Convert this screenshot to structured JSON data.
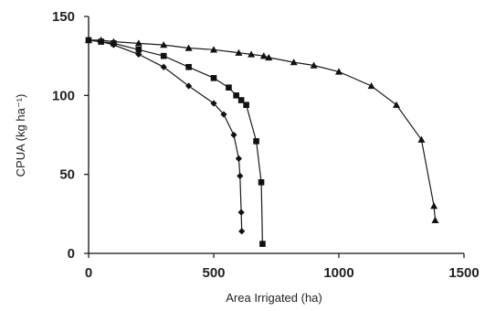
{
  "chart_data": {
    "type": "line",
    "xlabel": "Area Irrigated (ha)",
    "ylabel": "CPUA (kg ha⁻¹)",
    "xlim": [
      0,
      1500
    ],
    "ylim": [
      0,
      150
    ],
    "x_ticks": [
      "0",
      "500",
      "1000",
      "1500"
    ],
    "y_ticks": [
      "0",
      "50",
      "100",
      "150"
    ],
    "grid": false,
    "legend": "none",
    "series": [
      {
        "marker": "diamond",
        "points": [
          [
            0,
            135
          ],
          [
            50,
            134
          ],
          [
            100,
            132
          ],
          [
            200,
            126
          ],
          [
            300,
            118
          ],
          [
            400,
            106
          ],
          [
            500,
            95
          ],
          [
            540,
            88
          ],
          [
            580,
            75
          ],
          [
            600,
            60
          ],
          [
            605,
            49
          ],
          [
            610,
            26
          ],
          [
            612,
            14
          ]
        ]
      },
      {
        "marker": "square",
        "points": [
          [
            0,
            135
          ],
          [
            50,
            134
          ],
          [
            100,
            133
          ],
          [
            200,
            129
          ],
          [
            300,
            125
          ],
          [
            400,
            118
          ],
          [
            500,
            111
          ],
          [
            560,
            105
          ],
          [
            590,
            100
          ],
          [
            610,
            97
          ],
          [
            630,
            94
          ],
          [
            670,
            71
          ],
          [
            690,
            45
          ],
          [
            695,
            6
          ]
        ]
      },
      {
        "marker": "triangle",
        "points": [
          [
            0,
            135
          ],
          [
            50,
            135
          ],
          [
            100,
            134
          ],
          [
            200,
            133
          ],
          [
            300,
            132
          ],
          [
            400,
            130
          ],
          [
            500,
            129
          ],
          [
            600,
            127
          ],
          [
            650,
            126
          ],
          [
            700,
            125
          ],
          [
            720,
            124
          ],
          [
            820,
            121
          ],
          [
            900,
            119
          ],
          [
            1000,
            115
          ],
          [
            1130,
            106
          ],
          [
            1230,
            94
          ],
          [
            1330,
            72
          ],
          [
            1380,
            30
          ],
          [
            1385,
            21
          ]
        ]
      }
    ]
  }
}
